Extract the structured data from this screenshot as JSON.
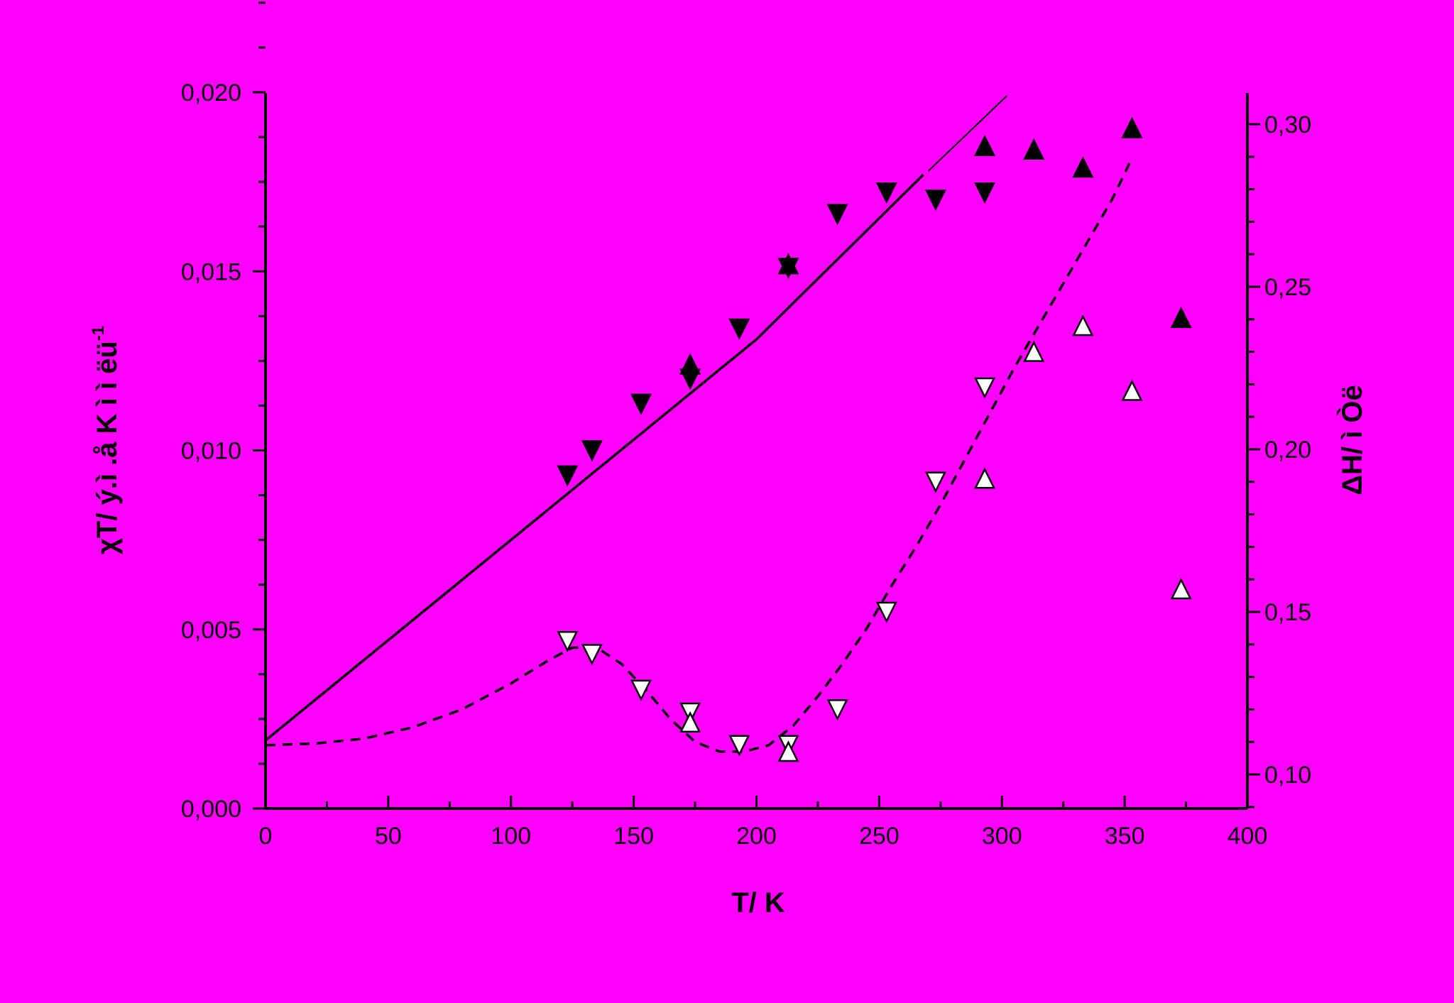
{
  "chart_data": {
    "type": "scatter",
    "background": "#FF00FF",
    "xlabel": "T/ K",
    "ylabel_left": "χT/ ý.ì .å K ì ì ëü",
    "ylabel_left_sup": "-1",
    "ylabel_right": "ΔH/ ì Òë",
    "xlim": [
      0,
      400
    ],
    "ylim_left": [
      0,
      0.02
    ],
    "ylim_right": [
      0.09,
      0.311
    ],
    "x_ticks": [
      0,
      50,
      100,
      150,
      200,
      250,
      300,
      350,
      400
    ],
    "x_tick_labels": [
      "0",
      "50",
      "100",
      "150",
      "200",
      "250",
      "300",
      "350",
      "400"
    ],
    "y_left_ticks": [
      0,
      0.005,
      0.01,
      0.015,
      0.02
    ],
    "y_left_tick_labels": [
      "0,000",
      "0,005",
      "0,010",
      "0,015",
      "0,020"
    ],
    "y_right_ticks": [
      0.1,
      0.15,
      0.2,
      0.25,
      0.3
    ],
    "y_right_tick_labels": [
      "0,10",
      "0,15",
      "0,20",
      "0,25",
      "0,30"
    ],
    "grid": false,
    "series": [
      {
        "marker": "filled-triangle-down",
        "axis": "left",
        "color": "#000000",
        "x": [
          123,
          133,
          153,
          173,
          193,
          213,
          233,
          253,
          273,
          293
        ],
        "y": [
          0.0093,
          0.01,
          0.0113,
          0.012,
          0.0134,
          0.0151,
          0.0166,
          0.0172,
          0.017,
          0.0172
        ]
      },
      {
        "marker": "filled-triangle-up",
        "axis": "left",
        "color": "#000000",
        "x": [
          173,
          213,
          293,
          313,
          333,
          353,
          373
        ],
        "y": [
          0.0124,
          0.0152,
          0.0185,
          0.0184,
          0.0179,
          0.019,
          0.0137
        ]
      },
      {
        "marker": "open-triangle-down",
        "axis": "right",
        "color": "#000000",
        "x": [
          123,
          133,
          153,
          173,
          193,
          213,
          233,
          253,
          273,
          293
        ],
        "y": [
          0.141,
          0.137,
          0.126,
          0.119,
          0.109,
          0.109,
          0.12,
          0.15,
          0.19,
          0.219
        ]
      },
      {
        "marker": "open-triangle-up",
        "axis": "right",
        "color": "#000000",
        "x": [
          173,
          213,
          293,
          313,
          333,
          353,
          373
        ],
        "y": [
          0.116,
          0.107,
          0.191,
          0.23,
          0.238,
          0.218,
          0.157
        ]
      }
    ],
    "fit_lines": [
      {
        "style": "solid",
        "axis": "left",
        "x": [
          0,
          100,
          200,
          268
        ],
        "y": [
          0.0019,
          0.0075,
          0.0131,
          0.0177
        ]
      },
      {
        "style": "solid-thin",
        "axis": "left",
        "x": [
          270,
          302
        ],
        "y": [
          0.0178,
          0.0199
        ]
      },
      {
        "style": "dashed",
        "axis": "right",
        "x": [
          0,
          20,
          40,
          60,
          80,
          100,
          115,
          125,
          135,
          145,
          155,
          165,
          175,
          185,
          195,
          205,
          215,
          225,
          235,
          245,
          255,
          265,
          275,
          285,
          295,
          305,
          315,
          325,
          335,
          345,
          352
        ],
        "y": [
          0.109,
          0.1095,
          0.111,
          0.1145,
          0.12,
          0.128,
          0.135,
          0.139,
          0.139,
          0.134,
          0.126,
          0.117,
          0.11,
          0.107,
          0.107,
          0.109,
          0.115,
          0.124,
          0.134,
          0.145,
          0.158,
          0.17,
          0.183,
          0.197,
          0.211,
          0.225,
          0.238,
          0.251,
          0.264,
          0.277,
          0.288
        ]
      }
    ]
  }
}
